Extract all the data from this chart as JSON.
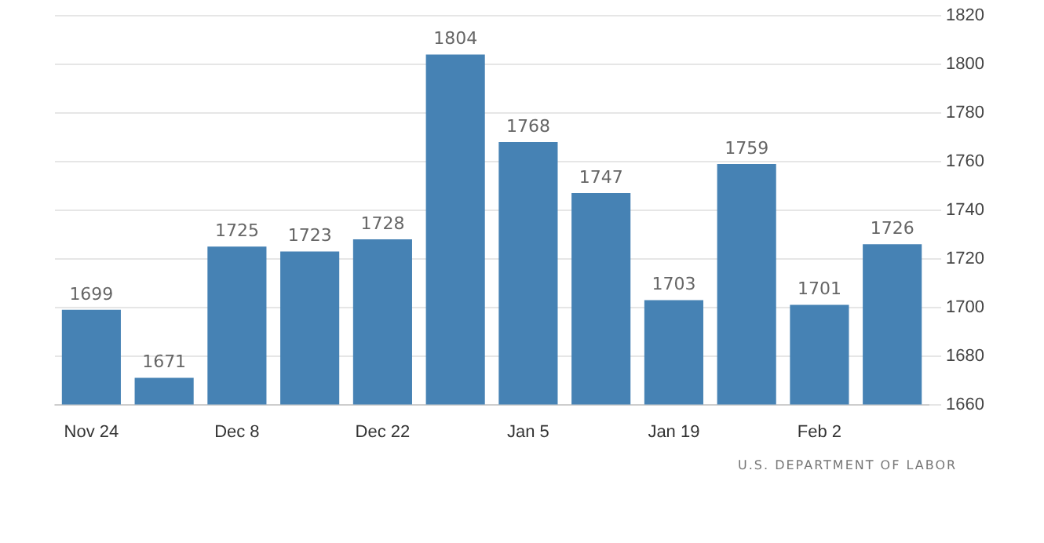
{
  "chart_data": {
    "type": "bar",
    "categories": [
      "Nov 24",
      null,
      "Dec 8",
      null,
      "Dec 22",
      null,
      "Jan 5",
      null,
      "Jan 19",
      null,
      "Feb 2",
      null
    ],
    "values": [
      1699,
      1671,
      1725,
      1723,
      1728,
      1804,
      1768,
      1747,
      1703,
      1759,
      1701,
      1726
    ],
    "color": "#4682b4",
    "ylim": [
      1660,
      1820
    ],
    "yticks": [
      1660,
      1680,
      1700,
      1720,
      1740,
      1760,
      1780,
      1800,
      1820
    ],
    "grid": "y",
    "data_labels": true,
    "legend": false,
    "annotations": [
      "U.S. DEPARTMENT OF LABOR"
    ]
  }
}
